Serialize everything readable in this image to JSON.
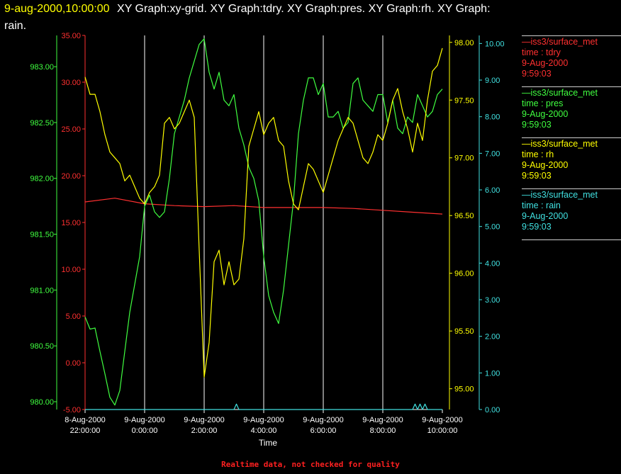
{
  "title": {
    "line1_date": "9-aug-2000,10:00:00",
    "line1_rest": "XY Graph:xy-grid.  XY Graph:tdry.  XY Graph:pres.  XY Graph:rh.  XY Graph:",
    "line2": "rain."
  },
  "footer": "Realtime data, not checked for quality",
  "legend": [
    {
      "source": "—iss3/surface_met",
      "field": "time : tdry",
      "date": "9-Aug-2000",
      "time": "9:59:03",
      "color": "#ff3030"
    },
    {
      "source": "—iss3/surface_met",
      "field": "time : pres",
      "date": "9-Aug-2000",
      "time": "9:59:03",
      "color": "#40ff40"
    },
    {
      "source": "—iss3/surface_met",
      "field": "time : rh",
      "date": "9-Aug-2000",
      "time": "9:59:03",
      "color": "#ffff00"
    },
    {
      "source": "—iss3/surface_met",
      "field": "time : rain",
      "date": "9-Aug-2000",
      "time": "9:59:03",
      "color": "#40e0e0"
    }
  ],
  "chart_data": {
    "type": "line",
    "xlabel": "Time",
    "x_ticks": [
      {
        "date": "8-Aug-2000",
        "time": "22:00:00"
      },
      {
        "date": "9-Aug-2000",
        "time": "0:00:00"
      },
      {
        "date": "9-Aug-2000",
        "time": "2:00:00"
      },
      {
        "date": "9-Aug-2000",
        "time": "4:00:00"
      },
      {
        "date": "9-Aug-2000",
        "time": "6:00:00"
      },
      {
        "date": "9-Aug-2000",
        "time": "8:00:00"
      },
      {
        "date": "9-Aug-2000",
        "time": "10:00:00"
      }
    ],
    "xlim": [
      "8-Aug-2000 22:00:00",
      "9-Aug-2000 10:00:00"
    ],
    "grid": "vertical lines at each x tick",
    "axes": {
      "tdry": {
        "color": "#ff3030",
        "ylim": [
          -5,
          35
        ],
        "ticks": [
          "35.00",
          "30.00",
          "25.00",
          "20.00",
          "15.00",
          "10.00",
          "5.00",
          "0.00",
          "-5.00"
        ]
      },
      "pres": {
        "color": "#40ff40",
        "ylim": [
          979.93,
          983.28
        ],
        "ticks": [
          "983.00",
          "982.50",
          "982.00",
          "981.50",
          "981.00",
          "980.50",
          "980.00"
        ]
      },
      "rh": {
        "color": "#ffff00",
        "ylim": [
          94.82,
          98.06
        ],
        "ticks": [
          "98.00",
          "97.50",
          "97.00",
          "96.50",
          "96.00",
          "95.50",
          "95.00"
        ]
      },
      "rain": {
        "color": "#40e0e0",
        "ylim": [
          0,
          10.22
        ],
        "ticks": [
          "10.00",
          "9.00",
          "8.00",
          "7.00",
          "6.00",
          "5.00",
          "4.00",
          "3.00",
          "2.00",
          "1.00",
          "0.00"
        ]
      }
    },
    "series": [
      {
        "name": "time : tdry",
        "axis": "tdry",
        "color": "#ff3030",
        "x": [
          "22:00",
          "23:00",
          "0:00",
          "1:00",
          "2:00",
          "3:00",
          "4:00",
          "5:00",
          "6:00",
          "7:00",
          "8:00",
          "9:00",
          "10:00"
        ],
        "y": [
          17.2,
          17.6,
          17.0,
          16.8,
          16.7,
          16.8,
          16.6,
          16.6,
          16.6,
          16.5,
          16.3,
          16.1,
          15.9
        ]
      },
      {
        "name": "time : pres",
        "axis": "pres",
        "color": "#40ff40",
        "x": [
          "22:00",
          "22:10",
          "22:20",
          "22:30",
          "22:40",
          "22:50",
          "23:00",
          "23:10",
          "23:20",
          "23:30",
          "23:40",
          "23:50",
          "0:00",
          "0:10",
          "0:20",
          "0:30",
          "0:40",
          "0:50",
          "1:00",
          "1:10",
          "1:20",
          "1:30",
          "1:40",
          "1:50",
          "2:00",
          "2:10",
          "2:20",
          "2:30",
          "2:40",
          "2:50",
          "3:00",
          "3:10",
          "3:20",
          "3:30",
          "3:40",
          "3:50",
          "4:00",
          "4:10",
          "4:20",
          "4:30",
          "4:40",
          "4:50",
          "5:00",
          "5:10",
          "5:20",
          "5:30",
          "5:40",
          "5:50",
          "6:00",
          "6:10",
          "6:20",
          "6:30",
          "6:40",
          "6:50",
          "7:00",
          "7:10",
          "7:20",
          "7:30",
          "7:40",
          "7:50",
          "8:00",
          "8:10",
          "8:20",
          "8:30",
          "8:40",
          "8:50",
          "9:00",
          "9:10",
          "9:20",
          "9:30",
          "9:40",
          "9:50",
          "10:00"
        ],
        "y": [
          980.76,
          980.65,
          980.66,
          980.45,
          980.25,
          980.04,
          979.97,
          980.1,
          980.45,
          980.8,
          981.05,
          981.3,
          981.75,
          981.85,
          981.7,
          981.65,
          981.7,
          982.0,
          982.4,
          982.55,
          982.7,
          982.9,
          983.05,
          983.2,
          983.25,
          982.95,
          982.8,
          982.95,
          982.7,
          982.65,
          982.75,
          982.45,
          982.3,
          982.1,
          982.0,
          981.8,
          981.3,
          980.95,
          980.8,
          980.7,
          981.0,
          981.4,
          981.8,
          982.4,
          982.7,
          982.9,
          982.9,
          982.75,
          982.85,
          982.55,
          982.55,
          982.6,
          982.45,
          982.5,
          982.85,
          982.9,
          982.7,
          982.65,
          982.6,
          982.75,
          982.75,
          982.5,
          982.7,
          982.45,
          982.4,
          982.55,
          982.5,
          982.75,
          982.65,
          982.55,
          982.6,
          982.75,
          982.8
        ]
      },
      {
        "name": "time : rh",
        "axis": "rh",
        "color": "#ffff00",
        "x": [
          "22:00",
          "22:10",
          "22:20",
          "22:30",
          "22:40",
          "22:50",
          "23:00",
          "23:10",
          "23:20",
          "23:30",
          "23:40",
          "23:50",
          "0:00",
          "0:10",
          "0:20",
          "0:30",
          "0:40",
          "0:50",
          "1:00",
          "1:10",
          "1:20",
          "1:30",
          "1:40",
          "1:50",
          "2:00",
          "2:10",
          "2:20",
          "2:30",
          "2:40",
          "2:50",
          "3:00",
          "3:10",
          "3:20",
          "3:30",
          "3:40",
          "3:50",
          "4:00",
          "4:10",
          "4:20",
          "4:30",
          "4:40",
          "4:50",
          "5:00",
          "5:10",
          "5:20",
          "5:30",
          "5:40",
          "5:50",
          "6:00",
          "6:10",
          "6:20",
          "6:30",
          "6:40",
          "6:50",
          "7:00",
          "7:10",
          "7:20",
          "7:30",
          "7:40",
          "7:50",
          "8:00",
          "8:10",
          "8:20",
          "8:30",
          "8:40",
          "8:50",
          "9:00",
          "9:10",
          "9:20",
          "9:30",
          "9:40",
          "9:50",
          "10:00"
        ],
        "y": [
          97.7,
          97.55,
          97.55,
          97.4,
          97.2,
          97.05,
          97.0,
          96.95,
          96.8,
          96.85,
          96.75,
          96.65,
          96.6,
          96.7,
          96.75,
          96.85,
          97.3,
          97.35,
          97.25,
          97.3,
          97.4,
          97.5,
          97.35,
          96.2,
          95.1,
          95.4,
          96.1,
          96.2,
          95.9,
          96.1,
          95.9,
          95.95,
          96.3,
          97.1,
          97.25,
          97.4,
          97.2,
          97.3,
          97.35,
          97.15,
          97.1,
          96.8,
          96.6,
          96.55,
          96.75,
          96.95,
          96.9,
          96.8,
          96.7,
          96.85,
          97.0,
          97.15,
          97.25,
          97.35,
          97.3,
          97.15,
          97.0,
          96.95,
          97.05,
          97.2,
          97.15,
          97.3,
          97.5,
          97.6,
          97.4,
          97.25,
          97.05,
          97.3,
          97.15,
          97.5,
          97.75,
          97.8,
          97.95
        ]
      },
      {
        "name": "time : rain",
        "axis": "rain",
        "color": "#40e0e0",
        "x": [
          "22:00",
          "3:00",
          "3:05",
          "3:10",
          "8:00",
          "9:00",
          "9:05",
          "9:10",
          "9:15",
          "9:20",
          "9:25",
          "9:30",
          "10:00"
        ],
        "y": [
          0,
          0,
          0.15,
          0,
          0,
          0,
          0.15,
          0,
          0.15,
          0,
          0.15,
          0,
          0
        ]
      }
    ]
  }
}
